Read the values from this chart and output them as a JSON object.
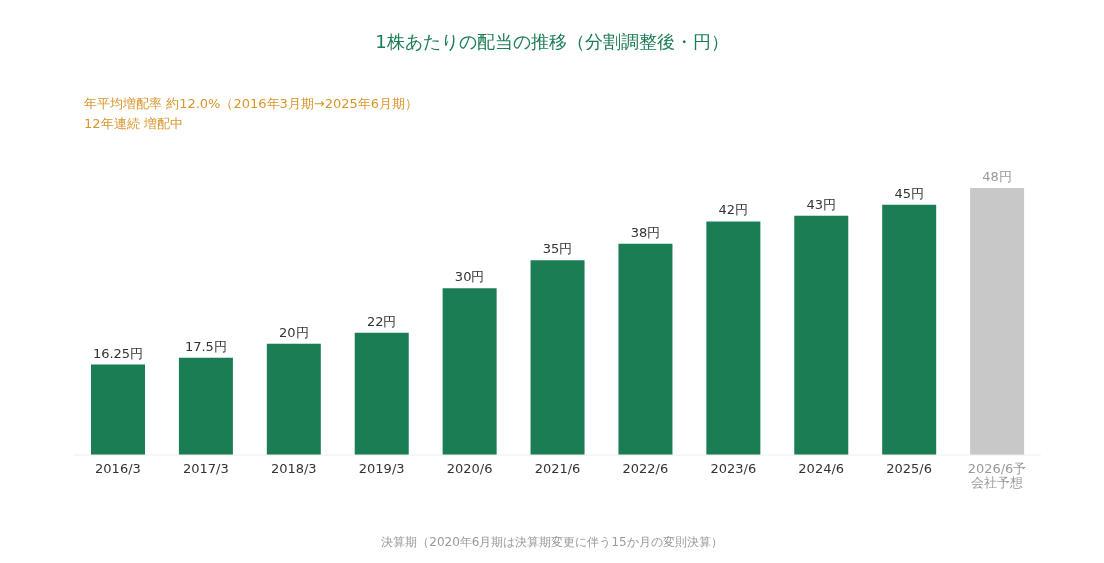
{
  "chart_data": {
    "type": "bar",
    "title": "1株あたりの配当の推移（分割調整後・円）",
    "categories": [
      "2016/3",
      "2017/3",
      "2018/3",
      "2019/3",
      "2020/6",
      "2021/6",
      "2022/6",
      "2023/6",
      "2024/6",
      "2025/6",
      "2026/6予会社予想"
    ],
    "values": [
      16.25,
      17.5,
      20,
      22,
      30,
      35,
      38,
      42,
      43,
      45,
      48
    ],
    "colors": [
      "#1b7d53",
      "#1b7d53",
      "#1b7d53",
      "#1b7d53",
      "#1b7d53",
      "#1b7d53",
      "#1b7d53",
      "#1b7d53",
      "#1b7d53",
      "#1b7d53",
      "#c8c8c8"
    ],
    "value_labels": [
      "16.25円",
      "17.5円",
      "20円",
      "22円",
      "30円",
      "35円",
      "38円",
      "42円",
      "43円",
      "45円",
      "48円"
    ],
    "annotations": [
      "年平均増配率 約12.0%（2016年3月期→2025年6月期）",
      "12年連続 増配中",
      "決算期（2020年6月期は決算期変更に伴う15か月の変則決算）"
    ]
  }
}
